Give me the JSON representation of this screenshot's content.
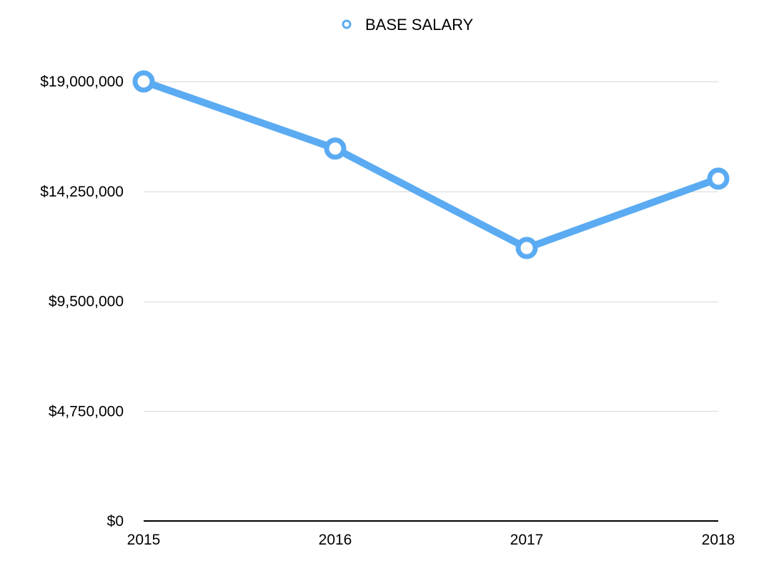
{
  "chart_data": {
    "type": "line",
    "title": "",
    "xlabel": "",
    "ylabel": "",
    "categories": [
      "2015",
      "2016",
      "2017",
      "2018"
    ],
    "series": [
      {
        "name": "BASE SALARY",
        "color": "#5aabf2",
        "values": [
          19000000,
          16100000,
          11800000,
          14800000
        ]
      }
    ],
    "ylim": [
      0,
      19000000
    ],
    "yticks": [
      0,
      4750000,
      9500000,
      14250000,
      19000000
    ],
    "ytick_labels": [
      "$0",
      "$4,750,000",
      "$9,500,000",
      "$14,250,000",
      "$19,000,000"
    ],
    "grid": true,
    "legend": "top-center",
    "marker": "hollow-circle"
  }
}
